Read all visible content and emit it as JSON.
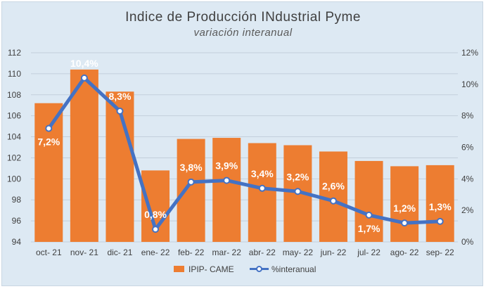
{
  "chart_data": {
    "type": "bar+line",
    "title": "Indice de Producción INdustrial Pyme",
    "subtitle": "variación interanual",
    "categories": [
      "oct- 21",
      "nov- 21",
      "dic- 21",
      "ene- 22",
      "feb- 22",
      "mar- 22",
      "abr- 22",
      "may- 22",
      "jun- 22",
      "jul- 22",
      "ago- 22",
      "sep- 22"
    ],
    "series": [
      {
        "name": "IPIP- CAME",
        "type": "bar",
        "axis": "left",
        "color": "#ed7d31",
        "values": [
          107.2,
          110.4,
          108.3,
          100.8,
          103.8,
          103.9,
          103.4,
          103.2,
          102.6,
          101.7,
          101.2,
          101.3
        ]
      },
      {
        "name": "%interanual",
        "type": "line",
        "axis": "right",
        "color": "#4472c4",
        "values": [
          7.2,
          10.4,
          8.3,
          0.8,
          3.8,
          3.9,
          3.4,
          3.2,
          2.6,
          1.7,
          1.2,
          1.3
        ],
        "labels": [
          "7,2%",
          "10,4%",
          "8,3%",
          "0,8%",
          "3,8%",
          "3,9%",
          "3,4%",
          "3,2%",
          "2,6%",
          "1,7%",
          "1,2%",
          "1,3%"
        ]
      }
    ],
    "y_left": {
      "min": 94,
      "max": 112,
      "ticks": [
        "94",
        "96",
        "98",
        "100",
        "102",
        "104",
        "106",
        "108",
        "110",
        "112"
      ]
    },
    "y_right": {
      "min": 0,
      "max": 12,
      "ticks": [
        "0%",
        "2%",
        "4%",
        "6%",
        "8%",
        "10%",
        "12%"
      ]
    },
    "grid": true,
    "legend_position": "bottom"
  }
}
